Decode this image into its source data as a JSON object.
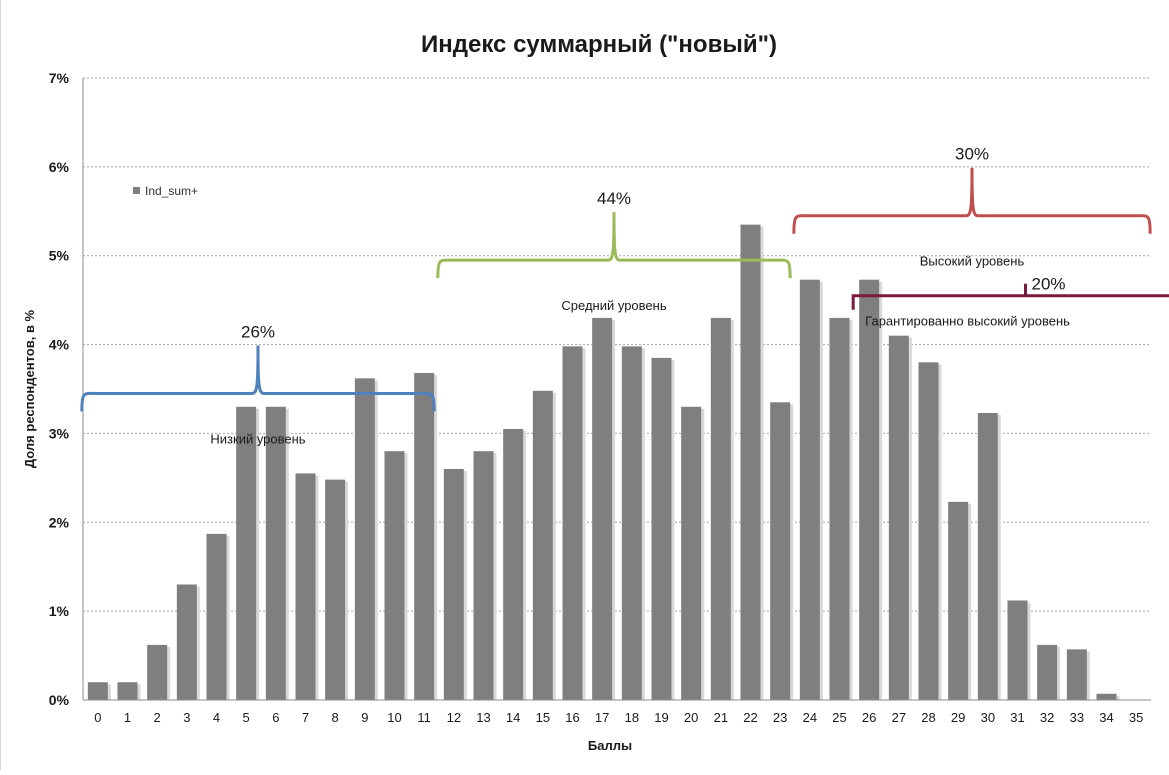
{
  "chart_data": {
    "type": "bar",
    "title": "Индекс суммарный (\"новый\")",
    "xlabel": "Баллы",
    "ylabel": "Доля респондентов, в %",
    "ylim": [
      0,
      7
    ],
    "yticks": [
      "0%",
      "1%",
      "2%",
      "3%",
      "4%",
      "5%",
      "6%",
      "7%"
    ],
    "grid": true,
    "legend_position": "top-left",
    "categories": [
      "0",
      "1",
      "2",
      "3",
      "4",
      "5",
      "6",
      "7",
      "8",
      "9",
      "10",
      "11",
      "12",
      "13",
      "14",
      "15",
      "16",
      "17",
      "18",
      "19",
      "20",
      "21",
      "22",
      "23",
      "24",
      "25",
      "26",
      "27",
      "28",
      "29",
      "30",
      "31",
      "32",
      "33",
      "34",
      "35"
    ],
    "series": [
      {
        "name": "Ind_sum+",
        "values": [
          0.2,
          0.2,
          0.62,
          1.3,
          1.87,
          3.3,
          3.3,
          2.55,
          2.48,
          3.62,
          2.8,
          3.68,
          2.6,
          2.8,
          3.05,
          3.48,
          3.98,
          4.3,
          3.98,
          3.85,
          3.3,
          4.3,
          5.35,
          3.35,
          4.73,
          4.3,
          4.73,
          4.1,
          3.8,
          2.23,
          3.23,
          1.12,
          0.62,
          0.57,
          0.07,
          0
        ],
        "color": "#7f7f7f"
      }
    ],
    "annotations": [
      {
        "label": "Низкий уровень",
        "percent": "26%",
        "from_category": "0",
        "to_category": "11",
        "level_y": 3.45,
        "color": "#4f81bd"
      },
      {
        "label": "Средний уровень",
        "percent": "44%",
        "from_category": "12",
        "to_category": "23",
        "level_y": 4.95,
        "color": "#9bbb59"
      },
      {
        "label": "Высокий уровень",
        "percent": "30%",
        "from_category": "24",
        "to_category": "35",
        "level_y": 5.45,
        "color": "#c0504d"
      },
      {
        "label": "Гарантированно высокий уровень",
        "percent": "20%",
        "from_category": "26",
        "to_category": "35",
        "level_y": 4.55,
        "color": "#7b1a3c"
      }
    ]
  }
}
